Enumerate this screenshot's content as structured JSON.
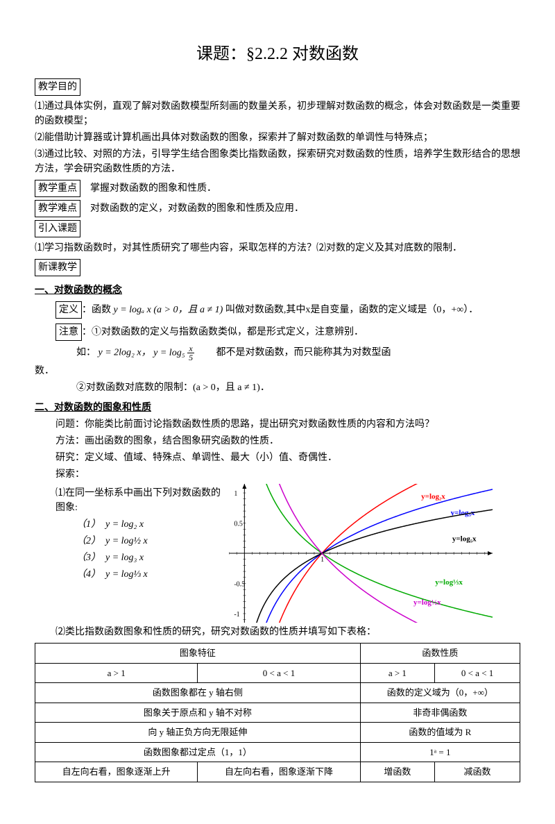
{
  "title": "课题：§2.2.2 对数函数",
  "headers": {
    "goal": "教学目的",
    "keypoint": "教学重点",
    "difficulty": "教学难点",
    "intro": "引入课题",
    "newlesson": "新课教学",
    "definition": "定义",
    "note": "注意"
  },
  "goals": [
    "⑴通过具体实例，直观了解对数函数模型所刻画的数量关系，初步理解对数函数的概念，体会对数函数是一类重要的函数模型；",
    "⑵能借助计算器或计算机画出具体对数函数的图象，探索并了解对数函数的单调性与特殊点；",
    "⑶通过比较、对照的方法，引导学生结合图象类比指数函数，探索研究对数函数的性质，培养学生数形结合的思想方法，学会研究函数性质的方法．"
  ],
  "keypoint_text": "掌握对数函数的图象和性质．",
  "difficulty_text": "对数函数的定义，对数函数的图象和性质及应用．",
  "intro_text": "⑴学习指数函数时，对其性质研究了哪些内容，采取怎样的方法？⑵对数的定义及其对底数的限制．",
  "sec1": {
    "title": "一、对数函数的概念",
    "def_before": "：函数 ",
    "def_formula": "y = logₐ x (a > 0，且 a ≠ 1)",
    "def_after": " 叫做对数函数,其中x是自变量，函数的定义域是（0，+∞）．",
    "note1": "：①对数函数的定义与指数函数类似，都是形式定义，注意辨别．",
    "example_pre": "如：",
    "example_f1": "y = 2log₂ x，",
    "example_f2": "y = log₅ ",
    "example_suffix": "　　都不是对数函数，而只能称其为对数型函",
    "example_line2": "数．",
    "note2": "②对数函数对底数的限制：(a > 0，且 a ≠ 1)．"
  },
  "sec2": {
    "title": "二、对数函数的图象和性质",
    "q": "问题：你能类比前面讨论指数函数性质的思路，提出研究对数函数性质的内容和方法吗？",
    "method": "方法：画出函数的图象，结合图象研究函数的性质．",
    "research": "研究：定义域、值域、特殊点、单调性、最大（小）值、奇偶性．",
    "explore": "探索：",
    "g1": "⑴在同一坐标系中画出下列对数函数的图象:",
    "items": [
      "（1）　y = log₂ x",
      "（2）　y = log½ x",
      "（3）　y = log₃ x",
      "（4）　y = log⅓ x"
    ],
    "g2": "⑵类比指数函数图象和性质的研究，研究对数函数的性质并填写如下表格："
  },
  "table": {
    "h1": "图象特征",
    "h2": "函数性质",
    "a_gt": "a > 1",
    "a_lt": "0 < a < 1",
    "r1c1": "函数图象都在 y 轴右侧",
    "r1c2": "函数的定义域为（0，+∞）",
    "r2c1": "图象关于原点和 y 轴不对称",
    "r2c2": "非奇非偶函数",
    "r3c1": "向 y 轴正负方向无限延伸",
    "r3c2": "函数的值域为 R",
    "r4c1": "函数图象都过定点（1，1）",
    "r4c2": "1ᵃ = 1",
    "r5c1": "自左向右看，图象逐渐上升",
    "r5c2": "自左向右看，图象逐渐下降",
    "r5c3": "增函数",
    "r5c4": "减函数"
  },
  "graph": {
    "xmin": -0.2,
    "xmax": 3.2,
    "ymin": -1.15,
    "ymax": 1.15,
    "yticks": [
      1,
      0.5,
      -0.5,
      -1
    ],
    "curves": [
      {
        "label": "y=log₂x",
        "color": "#ff0000",
        "base": 2,
        "lx": 2.28,
        "ly": 0.9
      },
      {
        "label": "y=log₃x",
        "color": "#0000ff",
        "base": 3,
        "lx": 2.66,
        "ly": 0.63
      },
      {
        "label": "y=log₅x",
        "color": "#000000",
        "base": 5,
        "lx": 2.68,
        "ly": 0.2
      },
      {
        "label": "y=log⅓x",
        "color": "#00aa00",
        "base": 0.3333,
        "lx": 2.46,
        "ly": -0.52
      },
      {
        "label": "y=log½x",
        "color": "#cc00cc",
        "base": 0.5,
        "lx": 2.18,
        "ly": -0.85
      }
    ]
  }
}
